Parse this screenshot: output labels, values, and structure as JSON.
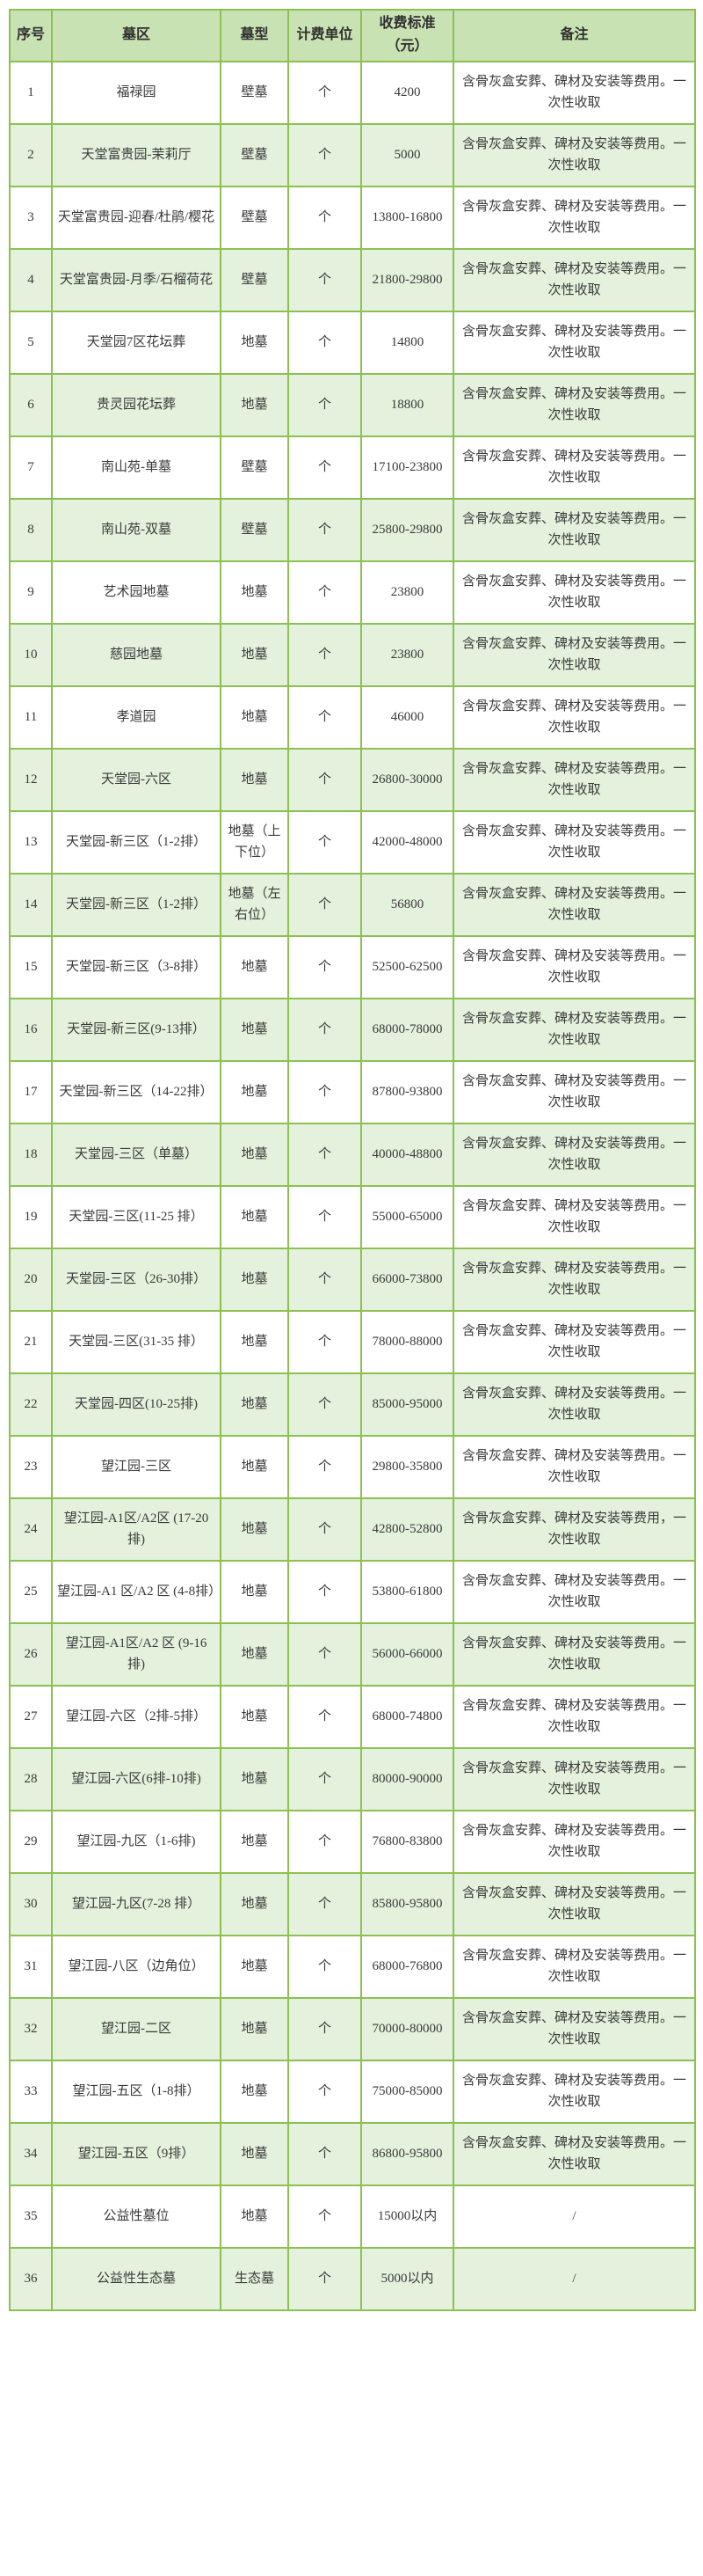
{
  "table": {
    "colors": {
      "border_green": "#8cc152",
      "header_bg": "#c9e2b3",
      "alt_row_bg": "#e4f1dc",
      "text": "#3a3a3a"
    },
    "columns": [
      {
        "key": "no",
        "label": "序号"
      },
      {
        "key": "area",
        "label": "墓区"
      },
      {
        "key": "type",
        "label": "墓型"
      },
      {
        "key": "unit",
        "label": "计费单位"
      },
      {
        "key": "fee",
        "label": "收费标准（元）"
      },
      {
        "key": "note",
        "label": "备注"
      }
    ],
    "rows": [
      {
        "no": "1",
        "area": "福禄园",
        "type": "壁墓",
        "unit": "个",
        "fee": "4200",
        "note": "含骨灰盒安葬、碑材及安装等费用。一次性收取"
      },
      {
        "no": "2",
        "area": "天堂富贵园-茉莉厅",
        "type": "壁墓",
        "unit": "个",
        "fee": "5000",
        "note": "含骨灰盒安葬、碑材及安装等费用。一次性收取"
      },
      {
        "no": "3",
        "area": "天堂富贵园-迎春/杜鹃/樱花",
        "type": "壁墓",
        "unit": "个",
        "fee": "13800-16800",
        "note": "含骨灰盒安葬、碑材及安装等费用。一次性收取"
      },
      {
        "no": "4",
        "area": "天堂富贵园-月季/石榴荷花",
        "type": "壁墓",
        "unit": "个",
        "fee": "21800-29800",
        "note": "含骨灰盒安葬、碑材及安装等费用。一次性收取"
      },
      {
        "no": "5",
        "area": "天堂园7区花坛葬",
        "type": "地墓",
        "unit": "个",
        "fee": "14800",
        "note": "含骨灰盒安葬、碑材及安装等费用。一次性收取"
      },
      {
        "no": "6",
        "area": "贵灵园花坛葬",
        "type": "地墓",
        "unit": "个",
        "fee": "18800",
        "note": "含骨灰盒安葬、碑材及安装等费用。一次性收取"
      },
      {
        "no": "7",
        "area": "南山苑-单墓",
        "type": "壁墓",
        "unit": "个",
        "fee": "17100-23800",
        "note": "含骨灰盒安葬、碑材及安装等费用。一次性收取"
      },
      {
        "no": "8",
        "area": "南山苑-双墓",
        "type": "壁墓",
        "unit": "个",
        "fee": "25800-29800",
        "note": "含骨灰盒安葬、碑材及安装等费用。一次性收取"
      },
      {
        "no": "9",
        "area": "艺术园地墓",
        "type": "地墓",
        "unit": "个",
        "fee": "23800",
        "note": "含骨灰盒安葬、碑材及安装等费用。一次性收取"
      },
      {
        "no": "10",
        "area": "慈园地墓",
        "type": "地墓",
        "unit": "个",
        "fee": "23800",
        "note": "含骨灰盒安葬、碑材及安装等费用。一次性收取"
      },
      {
        "no": "11",
        "area": "孝道园",
        "type": "地墓",
        "unit": "个",
        "fee": "46000",
        "note": "含骨灰盒安葬、碑材及安装等费用。一次性收取"
      },
      {
        "no": "12",
        "area": "天堂园-六区",
        "type": "地墓",
        "unit": "个",
        "fee": "26800-30000",
        "note": "含骨灰盒安葬、碑材及安装等费用。一次性收取"
      },
      {
        "no": "13",
        "area": "天堂园-新三区（1-2排）",
        "type": "地墓（上下位）",
        "unit": "个",
        "fee": "42000-48000",
        "note": "含骨灰盒安葬、碑材及安装等费用。一次性收取"
      },
      {
        "no": "14",
        "area": "天堂园-新三区（1-2排）",
        "type": "地墓（左右位）",
        "unit": "个",
        "fee": "56800",
        "note": "含骨灰盒安葬、碑材及安装等费用。一次性收取"
      },
      {
        "no": "15",
        "area": "天堂园-新三区（3-8排）",
        "type": "地墓",
        "unit": "个",
        "fee": "52500-62500",
        "note": "含骨灰盒安葬、碑材及安装等费用。一次性收取"
      },
      {
        "no": "16",
        "area": "天堂园-新三区(9-13排）",
        "type": "地墓",
        "unit": "个",
        "fee": "68000-78000",
        "note": "含骨灰盒安葬、碑材及安装等费用。一次性收取"
      },
      {
        "no": "17",
        "area": "天堂园-新三区（14-22排）",
        "type": "地墓",
        "unit": "个",
        "fee": "87800-93800",
        "note": "含骨灰盒安葬、碑材及安装等费用。一次性收取"
      },
      {
        "no": "18",
        "area": "天堂园-三区（单墓）",
        "type": "地墓",
        "unit": "个",
        "fee": "40000-48800",
        "note": "含骨灰盒安葬、碑材及安装等费用。一次性收取"
      },
      {
        "no": "19",
        "area": "天堂园-三区(11-25 排）",
        "type": "地墓",
        "unit": "个",
        "fee": "55000-65000",
        "note": "含骨灰盒安葬、碑材及安装等费用。一次性收取"
      },
      {
        "no": "20",
        "area": "天堂园-三区（26-30排）",
        "type": "地墓",
        "unit": "个",
        "fee": "66000-73800",
        "note": "含骨灰盒安葬、碑材及安装等费用。一次性收取"
      },
      {
        "no": "21",
        "area": "天堂园-三区(31-35 排）",
        "type": "地墓",
        "unit": "个",
        "fee": "78000-88000",
        "note": "含骨灰盒安葬、碑材及安装等费用。一次性收取"
      },
      {
        "no": "22",
        "area": "天堂园-四区(10-25排)",
        "type": "地墓",
        "unit": "个",
        "fee": "85000-95000",
        "note": "含骨灰盒安葬、碑材及安装等费用。一次性收取"
      },
      {
        "no": "23",
        "area": "望江园-三区",
        "type": "地墓",
        "unit": "个",
        "fee": "29800-35800",
        "note": "含骨灰盒安葬、碑材及安装等费用。一次性收取"
      },
      {
        "no": "24",
        "area": "望江园-A1区/A2区 (17-20 排)",
        "type": "地墓",
        "unit": "个",
        "fee": "42800-52800",
        "note": "含骨灰盒安葬、碑材及安装等费用，一次性收取"
      },
      {
        "no": "25",
        "area": "望江园-A1 区/A2 区 (4-8排）",
        "type": "地墓",
        "unit": "个",
        "fee": "53800-61800",
        "note": "含骨灰盒安葬、碑材及安装等费用。一次性收取"
      },
      {
        "no": "26",
        "area": "望江园-A1区/A2 区 (9-16 排)",
        "type": "地墓",
        "unit": "个",
        "fee": "56000-66000",
        "note": "含骨灰盒安葬、碑材及安装等费用。一次性收取"
      },
      {
        "no": "27",
        "area": "望江园-六区（2排-5排）",
        "type": "地墓",
        "unit": "个",
        "fee": "68000-74800",
        "note": "含骨灰盒安葬、碑材及安装等费用。一次性收取"
      },
      {
        "no": "28",
        "area": "望江园-六区(6排-10排)",
        "type": "地墓",
        "unit": "个",
        "fee": "80000-90000",
        "note": "含骨灰盒安葬、碑材及安装等费用。一次性收取"
      },
      {
        "no": "29",
        "area": "望江园-九区（1-6排)",
        "type": "地墓",
        "unit": "个",
        "fee": "76800-83800",
        "note": "含骨灰盒安葬、碑材及安装等费用。一次性收取"
      },
      {
        "no": "30",
        "area": "望江园-九区(7-28 排）",
        "type": "地墓",
        "unit": "个",
        "fee": "85800-95800",
        "note": "含骨灰盒安葬、碑材及安装等费用。一次性收取"
      },
      {
        "no": "31",
        "area": "望江园-八区（边角位）",
        "type": "地墓",
        "unit": "个",
        "fee": "68000-76800",
        "note": "含骨灰盒安葬、碑材及安装等费用。一次性收取"
      },
      {
        "no": "32",
        "area": "望江园-二区",
        "type": "地墓",
        "unit": "个",
        "fee": "70000-80000",
        "note": "含骨灰盒安葬、碑材及安装等费用。一次性收取"
      },
      {
        "no": "33",
        "area": "望江园-五区（1-8排）",
        "type": "地墓",
        "unit": "个",
        "fee": "75000-85000",
        "note": "含骨灰盒安葬、碑材及安装等费用。一次性收取"
      },
      {
        "no": "34",
        "area": "望江园-五区（9排）",
        "type": "地墓",
        "unit": "个",
        "fee": "86800-95800",
        "note": "含骨灰盒安葬、碑材及安装等费用。一次性收取"
      },
      {
        "no": "35",
        "area": "公益性墓位",
        "type": "地墓",
        "unit": "个",
        "fee": "15000以内",
        "note": "/"
      },
      {
        "no": "36",
        "area": "公益性生态墓",
        "type": "生态墓",
        "unit": "个",
        "fee": "5000以内",
        "note": "/"
      }
    ]
  }
}
